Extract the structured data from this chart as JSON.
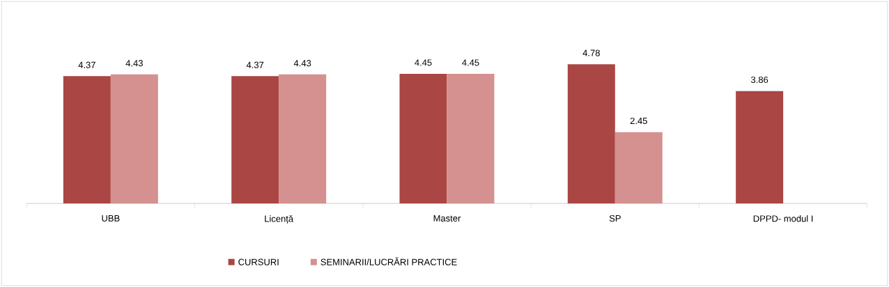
{
  "chart_data": {
    "type": "bar",
    "categories": [
      "UBB",
      "Licență",
      "Master",
      "SP",
      "DPPD- modul I"
    ],
    "series": [
      {
        "name": "CURSURI",
        "color": "#aa4643",
        "values": [
          4.37,
          4.37,
          4.45,
          4.78,
          3.86
        ]
      },
      {
        "name": "SEMINARII/LUCRĂRI PRACTICE",
        "color": "#d4918f",
        "values": [
          4.43,
          4.43,
          4.45,
          2.45,
          null
        ]
      }
    ],
    "data_labels": true,
    "legend": "bottom"
  }
}
